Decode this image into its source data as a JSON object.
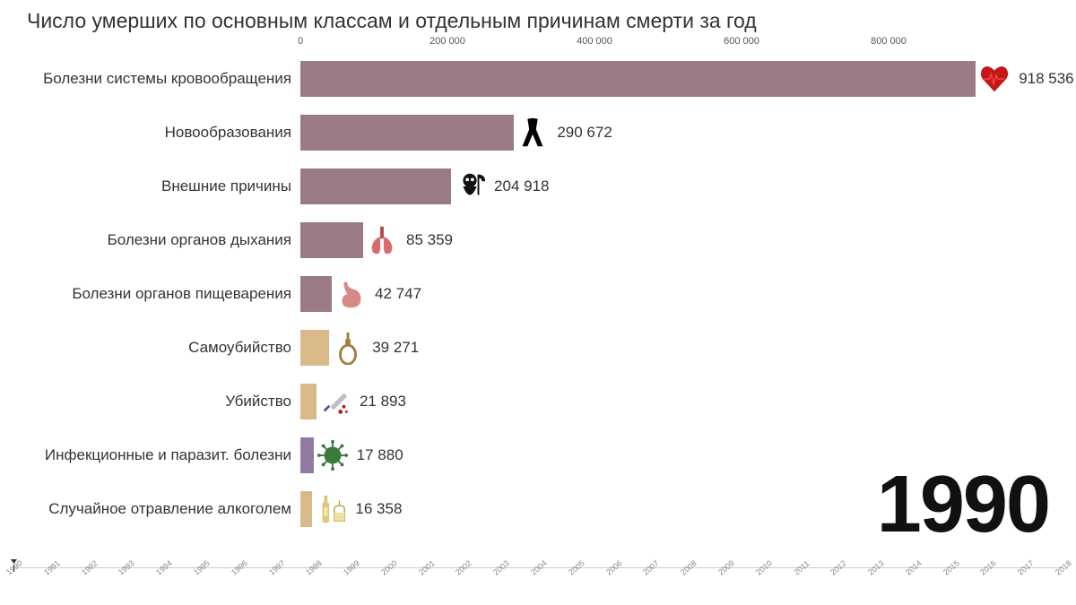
{
  "title": "Число умерших по основным классам и отдельным причинам смерти за год",
  "year": "1990",
  "chart": {
    "type": "bar",
    "x_axis": {
      "min": 0,
      "max": 1000000,
      "ticks": [
        0,
        200000,
        400000,
        600000,
        800000
      ],
      "tick_labels": [
        "0",
        "200 000",
        "400 000",
        "600 000",
        "800 000"
      ]
    },
    "bar_colors": {
      "mauve": "#9a7a87",
      "tan": "#d9b98a",
      "purple": "#927ba3"
    },
    "label_fontsize": 17,
    "value_fontsize": 17,
    "title_fontsize": 23,
    "background_color": "#ffffff",
    "rows": [
      {
        "label": "Болезни системы кровообращения",
        "value": 918536,
        "value_label": "918 536",
        "color": "#9a7a87",
        "icon": "heart"
      },
      {
        "label": "Новообразования",
        "value": 290672,
        "value_label": "290 672",
        "color": "#9a7a87",
        "icon": "ribbon"
      },
      {
        "label": "Внешние причины",
        "value": 204918,
        "value_label": "204 918",
        "color": "#9a7a87",
        "icon": "reaper"
      },
      {
        "label": "Болезни органов дыхания",
        "value": 85359,
        "value_label": "85 359",
        "color": "#9a7a87",
        "icon": "lungs"
      },
      {
        "label": "Болезни органов пищеварения",
        "value": 42747,
        "value_label": "42 747",
        "color": "#9a7a87",
        "icon": "stomach"
      },
      {
        "label": "Самоубийство",
        "value": 39271,
        "value_label": "39 271",
        "color": "#d9b98a",
        "icon": "noose"
      },
      {
        "label": "Убийство",
        "value": 21893,
        "value_label": "21 893",
        "color": "#d9b98a",
        "icon": "knife"
      },
      {
        "label": "Инфекционные и паразит. болезни",
        "value": 17880,
        "value_label": "17 880",
        "color": "#927ba3",
        "icon": "virus"
      },
      {
        "label": "Случайное отравление алкоголем",
        "value": 16358,
        "value_label": "16 358",
        "color": "#d9b98a",
        "icon": "bottle"
      }
    ]
  },
  "timeline": {
    "start": 1990,
    "end": 2018,
    "current": 1990
  }
}
